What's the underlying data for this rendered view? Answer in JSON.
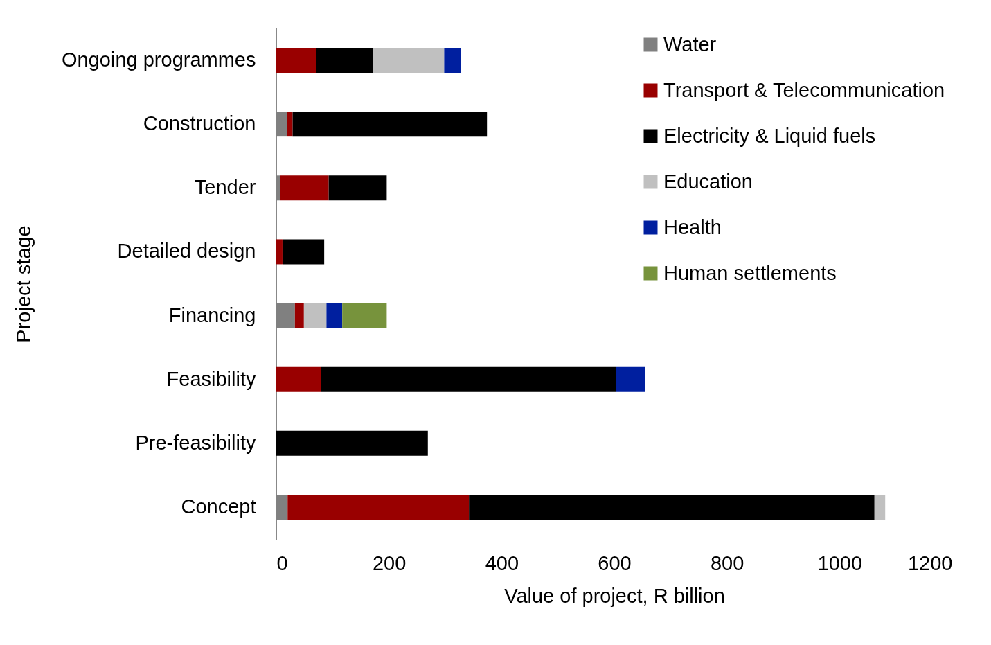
{
  "chart_data": {
    "type": "bar",
    "orientation": "horizontal",
    "stacked": true,
    "xlabel": "Value of project, R billion",
    "ylabel": "Project stage",
    "categories": [
      "Ongoing programmes",
      "Construction",
      "Tender",
      "Detailed design",
      "Financing",
      "Feasibility",
      "Pre-feasibility",
      "Concept"
    ],
    "series": [
      {
        "name": "Water",
        "color": "#808080",
        "values": [
          null,
          19,
          7,
          null,
          33,
          null,
          null,
          20
        ]
      },
      {
        "name": "Transport & Telecommunication",
        "color": "#990000",
        "values": [
          71,
          10,
          86,
          11,
          16,
          79,
          null,
          322
        ]
      },
      {
        "name": "Electricity & Liquid fuels",
        "color": "#000000",
        "values": [
          101,
          345,
          103,
          74,
          null,
          524,
          269,
          720
        ]
      },
      {
        "name": "Education",
        "color": "#c0c0c0",
        "values": [
          126,
          null,
          null,
          null,
          40,
          null,
          null,
          19
        ]
      },
      {
        "name": "Health",
        "color": "#001f9f",
        "values": [
          30,
          null,
          null,
          null,
          28,
          52,
          null,
          null
        ]
      },
      {
        "name": "Human settlements",
        "color": "#77933c",
        "values": [
          null,
          null,
          null,
          null,
          79,
          null,
          null,
          null
        ]
      }
    ],
    "xlim": [
      0,
      1200
    ],
    "xticks": [
      0,
      200,
      400,
      600,
      800,
      1000,
      1200
    ],
    "grid": false,
    "legend": "top right"
  }
}
